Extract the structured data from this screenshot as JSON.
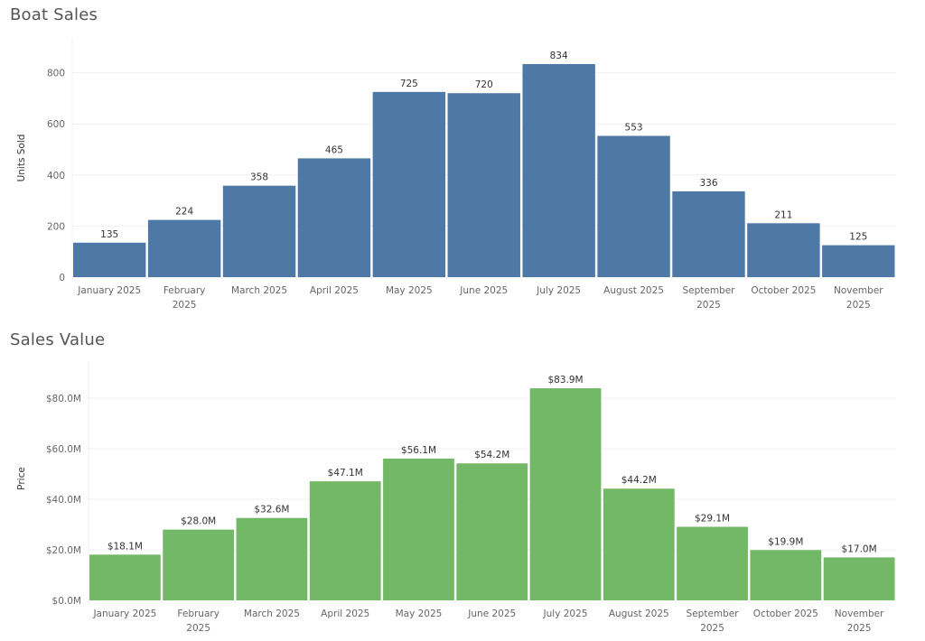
{
  "chart_data": [
    {
      "type": "bar",
      "title": "Boat Sales",
      "xlabel": "",
      "ylabel": "Units Sold",
      "categories": [
        "January 2025",
        "February 2025",
        "March 2025",
        "April 2025",
        "May 2025",
        "June 2025",
        "July 2025",
        "August 2025",
        "September 2025",
        "October 2025",
        "November 2025"
      ],
      "category_lines": [
        [
          "January 2025"
        ],
        [
          "February",
          "2025"
        ],
        [
          "March 2025"
        ],
        [
          "April 2025"
        ],
        [
          "May 2025"
        ],
        [
          "June 2025"
        ],
        [
          "July 2025"
        ],
        [
          "August 2025"
        ],
        [
          "September",
          "2025"
        ],
        [
          "October 2025"
        ],
        [
          "November",
          "2025"
        ]
      ],
      "values": [
        135,
        224,
        358,
        465,
        725,
        720,
        834,
        553,
        336,
        211,
        125
      ],
      "data_labels": [
        "135",
        "224",
        "358",
        "465",
        "725",
        "720",
        "834",
        "553",
        "336",
        "211",
        "125"
      ],
      "yticks": [
        0,
        200,
        400,
        600,
        800
      ],
      "ytick_labels": [
        "0",
        "200",
        "400",
        "600",
        "800"
      ],
      "ylim": [
        0,
        930
      ],
      "grid": true,
      "color": "#4e79a7"
    },
    {
      "type": "bar",
      "title": "Sales Value",
      "xlabel": "",
      "ylabel": "Price",
      "categories": [
        "January 2025",
        "February 2025",
        "March 2025",
        "April 2025",
        "May 2025",
        "June 2025",
        "July 2025",
        "August 2025",
        "September 2025",
        "October 2025",
        "November 2025"
      ],
      "category_lines": [
        [
          "January 2025"
        ],
        [
          "February",
          "2025"
        ],
        [
          "March 2025"
        ],
        [
          "April 2025"
        ],
        [
          "May 2025"
        ],
        [
          "June 2025"
        ],
        [
          "July 2025"
        ],
        [
          "August 2025"
        ],
        [
          "September",
          "2025"
        ],
        [
          "October 2025"
        ],
        [
          "November",
          "2025"
        ]
      ],
      "values": [
        18.1,
        28.0,
        32.6,
        47.1,
        56.1,
        54.2,
        83.9,
        44.2,
        29.1,
        19.9,
        17.0
      ],
      "value_unit": "$M",
      "data_labels": [
        "$18.1M",
        "$28.0M",
        "$32.6M",
        "$47.1M",
        "$56.1M",
        "$54.2M",
        "$83.9M",
        "$44.2M",
        "$29.1M",
        "$19.9M",
        "$17.0M"
      ],
      "yticks": [
        0,
        20,
        40,
        60,
        80
      ],
      "ytick_labels": [
        "$0.0M",
        "$20.0M",
        "$40.0M",
        "$60.0M",
        "$80.0M"
      ],
      "ylim": [
        0,
        94
      ],
      "grid": true,
      "color": "#72b866"
    }
  ]
}
